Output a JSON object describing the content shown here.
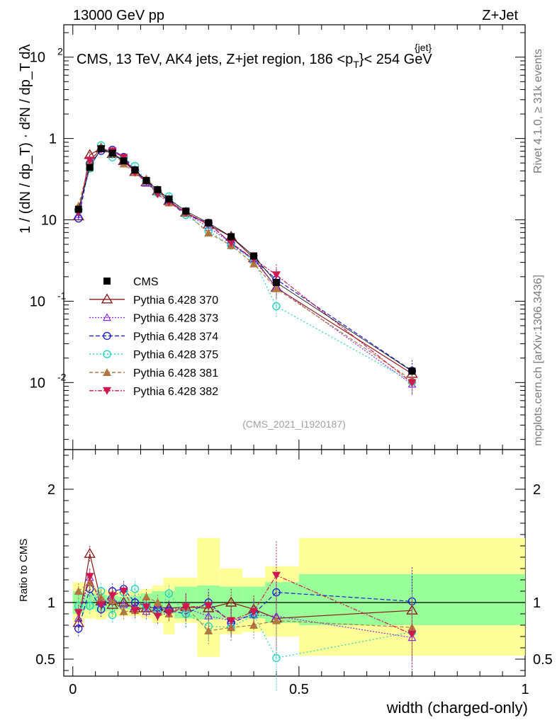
{
  "header": {
    "left": "13000 GeV pp",
    "right": "Z+Jet"
  },
  "title": "CMS, 13 TeV, AK4 jets, Z+jet region, 186 <p",
  "title_sup": "{jet}",
  "title_sub": "T",
  "title_tail": "}< 254 GeV",
  "side_texts": {
    "rivet": "Rivet 4.1.0, ≥ 31k events",
    "mcplots": "mcplots.cern.ch [arXiv:1306.3436]"
  },
  "analysis_tag": "(CMS_2021_I1920187)",
  "upper_ylabel": "1 / (dN / dp_T) · d²N / dp_T dλ",
  "upper_ytick_labels": [
    "10",
    "1",
    "10",
    "10",
    "10"
  ],
  "upper_ytick_exps": [
    "2",
    "-1",
    "-2"
  ],
  "lower_ylabel": "Ratio to CMS",
  "lower_ytick_labels": [
    "2",
    "1",
    "0.5"
  ],
  "lower_ytick_labels_right": [
    "2",
    "1",
    "0.5"
  ],
  "x_tick_labels": [
    "0",
    "0.5",
    "1"
  ],
  "xlabel": "width (charged-only)",
  "legend": [
    {
      "label": "CMS",
      "color": "#000000",
      "marker": "square-filled",
      "dash": ""
    },
    {
      "label": "Pythia 6.428 370",
      "color": "#8b1a1a",
      "marker": "triangle-open",
      "dash": ""
    },
    {
      "label": "Pythia 6.428 373",
      "color": "#8a2be2",
      "marker": "triangle-open-small",
      "dash": "2,2"
    },
    {
      "label": "Pythia 6.428 374",
      "color": "#1f1fd0",
      "marker": "circle-open",
      "dash": "6,3"
    },
    {
      "label": "Pythia 6.428 375",
      "color": "#22d3c0",
      "marker": "circle-open",
      "dash": "2,3"
    },
    {
      "label": "Pythia 6.428 381",
      "color": "#b07840",
      "marker": "triangle-filled",
      "dash": "5,3"
    },
    {
      "label": "Pythia 6.428 382",
      "color": "#d01850",
      "marker": "triangle-down-filled",
      "dash": "6,2,2,2"
    }
  ],
  "chart_data": {
    "type": "line",
    "title": "CMS, 13 TeV, AK4 jets, Z+jet region, 186 < pT{jet} < 254 GeV",
    "xlabel": "width (charged-only)",
    "ylabel": "1/(dN/dpT) d2N/dpT dλ",
    "xlim": [
      -0.02,
      1.0
    ],
    "ylim_upper": [
      0.0015,
      250
    ],
    "y_scale": "log",
    "ylim_ratio": [
      0.35,
      2.35
    ],
    "x": [
      0.0125,
      0.0375,
      0.0625,
      0.0875,
      0.1125,
      0.1375,
      0.1625,
      0.1875,
      0.2125,
      0.25,
      0.3,
      0.35,
      0.4,
      0.45,
      0.75
    ],
    "cms": [
      1.35,
      4.4,
      7.5,
      6.6,
      5.3,
      4.1,
      3.05,
      2.35,
      1.8,
      1.28,
      0.92,
      0.62,
      0.36,
      0.17,
      0.0138
    ],
    "cms_bin_edges": [
      0,
      0.025,
      0.05,
      0.075,
      0.1,
      0.125,
      0.15,
      0.175,
      0.2,
      0.225,
      0.275,
      0.325,
      0.375,
      0.425,
      0.5,
      1.0
    ],
    "cms_band_green": [
      [
        0.9,
        1.1
      ],
      [
        0.94,
        1.08
      ],
      [
        0.92,
        1.07
      ],
      [
        0.93,
        1.06
      ],
      [
        0.94,
        1.05
      ],
      [
        0.93,
        1.06
      ],
      [
        0.92,
        1.08
      ],
      [
        0.9,
        1.1
      ],
      [
        0.9,
        1.1
      ],
      [
        0.86,
        1.14
      ],
      [
        0.85,
        1.15
      ],
      [
        0.86,
        1.14
      ],
      [
        0.86,
        1.14
      ],
      [
        0.82,
        1.18
      ],
      [
        0.8,
        1.25
      ]
    ],
    "cms_band_yellow": [
      [
        0.82,
        1.18
      ],
      [
        0.86,
        1.15
      ],
      [
        0.85,
        1.12
      ],
      [
        0.87,
        1.11
      ],
      [
        0.88,
        1.1
      ],
      [
        0.88,
        1.1
      ],
      [
        0.86,
        1.12
      ],
      [
        0.82,
        1.15
      ],
      [
        0.72,
        1.22
      ],
      [
        0.82,
        1.22
      ],
      [
        0.52,
        1.57
      ],
      [
        0.72,
        1.3
      ],
      [
        0.74,
        1.22
      ],
      [
        0.7,
        1.32
      ],
      [
        0.53,
        1.57
      ]
    ],
    "series": [
      {
        "name": "Pythia 6.428 370",
        "ratio": [
          0.82,
          1.43,
          1.01,
          0.98,
          1.0,
          0.95,
          0.95,
          0.96,
          0.95,
          0.96,
          0.95,
          1.0,
          0.94,
          0.86,
          0.93
        ]
      },
      {
        "name": "Pythia 6.428 373",
        "ratio": [
          0.86,
          1.22,
          1.0,
          1.03,
          0.98,
          0.96,
          0.92,
          0.95,
          0.94,
          0.95,
          0.88,
          0.84,
          0.89,
          0.88,
          0.69
        ]
      },
      {
        "name": "Pythia 6.428 374",
        "ratio": [
          0.77,
          1.12,
          0.94,
          1.1,
          1.12,
          1.0,
          0.97,
          0.95,
          0.93,
          0.9,
          1.0,
          0.82,
          0.9,
          1.09,
          1.01
        ]
      },
      {
        "name": "Pythia 6.428 375",
        "ratio": [
          0.97,
          0.97,
          1.1,
          0.89,
          1.09,
          1.12,
          0.97,
          0.91,
          1.08,
          0.9,
          0.79,
          0.78,
          0.89,
          0.51,
          0.74
        ]
      },
      {
        "name": "Pythia 6.428 381",
        "ratio": [
          1.1,
          1.18,
          1.04,
          1.02,
          0.92,
          0.93,
          1.05,
          1.0,
          0.9,
          0.96,
          0.75,
          0.78,
          0.8,
          0.84,
          0.78
        ]
      },
      {
        "name": "Pythia 6.428 382",
        "ratio": [
          0.91,
          1.23,
          0.98,
          1.06,
          1.1,
          0.93,
          0.96,
          0.88,
          0.91,
          0.96,
          0.97,
          0.84,
          0.92,
          1.24,
          0.72
        ]
      }
    ]
  }
}
